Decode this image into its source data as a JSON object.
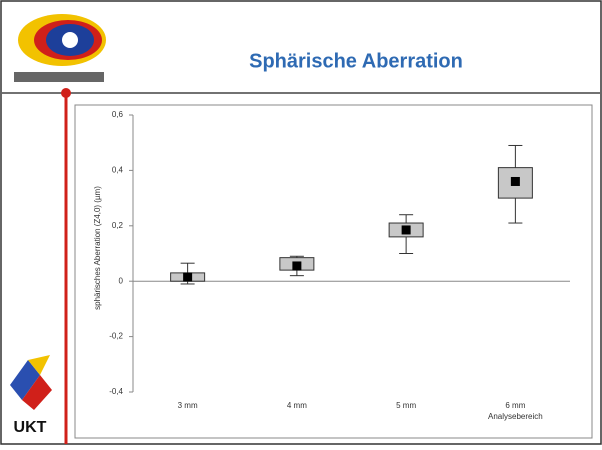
{
  "logo": "UKT",
  "chart_data": {
    "type": "box",
    "title": "Sphärische Aberration",
    "y_label": "sphärisches Aberration (Z4,0) (µm)",
    "x_label": "Analysebereich",
    "categories": [
      "3 mm",
      "4 mm",
      "5 mm",
      "6 mm"
    ],
    "min": [
      -0.01,
      0.02,
      0.1,
      0.21
    ],
    "q1": [
      0.0,
      0.04,
      0.16,
      0.3
    ],
    "q3": [
      0.03,
      0.085,
      0.21,
      0.41
    ],
    "max": [
      0.065,
      0.09,
      0.24,
      0.49
    ],
    "mean": [
      0.015,
      0.055,
      0.185,
      0.36
    ],
    "color": "#c8c8c8",
    "ylim": [
      -0.4,
      0.6
    ],
    "yticks": [
      {
        "value": -0.4,
        "label": "-0,4"
      },
      {
        "value": -0.2,
        "label": "-0,2"
      },
      0,
      {
        "value": 0.2,
        "label": "0,2"
      },
      {
        "value": 0.4,
        "label": "0,4"
      },
      {
        "value": 0.6,
        "label": "0,6"
      }
    ]
  }
}
